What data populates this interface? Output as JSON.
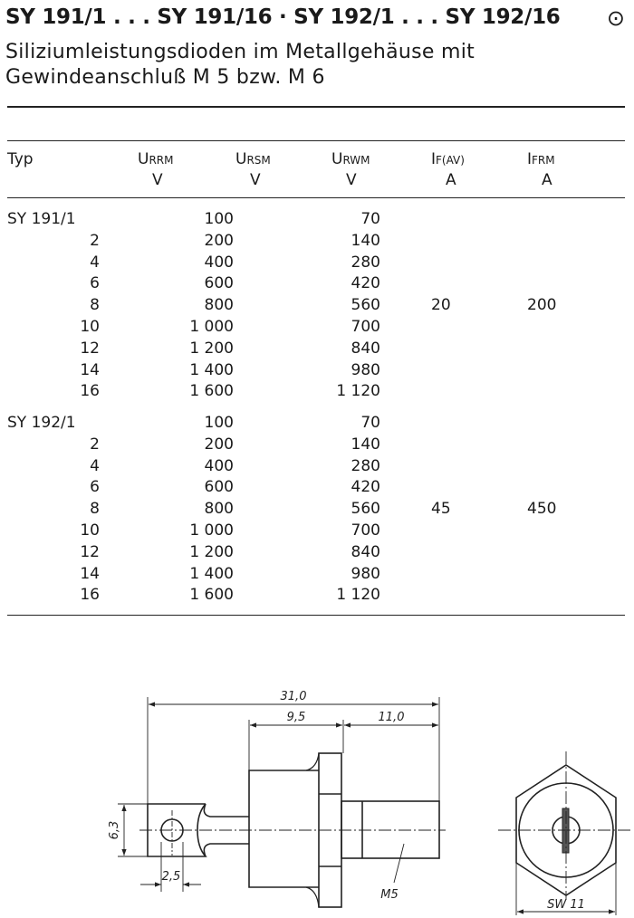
{
  "header": {
    "title": "SY 191/1 . . . SY 191/16 · SY 192/1 . . . SY 192/16",
    "symbol": "⊙",
    "subtitle_line1": "Siliziumleistungsdioden im Metallgehäuse mit",
    "subtitle_line2": "Gewindeanschluß M 5 bzw. M 6"
  },
  "table": {
    "columns": [
      {
        "main": "Typ",
        "unit": ""
      },
      {
        "main": "U",
        "sub": "RRM",
        "unit": "V"
      },
      {
        "main": "U",
        "sub": "RSM",
        "unit": "V"
      },
      {
        "main": "U",
        "sub": "RWM",
        "unit": "V"
      },
      {
        "main": "I",
        "sub": "F(AV)",
        "unit": "A"
      },
      {
        "main": "I",
        "sub": "FRM",
        "unit": "A"
      }
    ],
    "groups": [
      {
        "rows": [
          {
            "typ": "SY 191/1",
            "urrm": "100",
            "urwm": "70"
          },
          {
            "typ": "2",
            "urrm": "200",
            "urwm": "140"
          },
          {
            "typ": "4",
            "urrm": "400",
            "urwm": "280"
          },
          {
            "typ": "6",
            "urrm": "600",
            "urwm": "420"
          },
          {
            "typ": "8",
            "urrm": "800",
            "urwm": "560"
          },
          {
            "typ": "10",
            "urrm": "1 000",
            "urwm": "700"
          },
          {
            "typ": "12",
            "urrm": "1 200",
            "urwm": "840"
          },
          {
            "typ": "14",
            "urrm": "1 400",
            "urwm": "980"
          },
          {
            "typ": "16",
            "urrm": "1 600",
            "urwm": "1 120"
          }
        ],
        "if_av": "20",
        "ifrm": "200"
      },
      {
        "rows": [
          {
            "typ": "SY 192/1",
            "urrm": "100",
            "urwm": "70"
          },
          {
            "typ": "2",
            "urrm": "200",
            "urwm": "140"
          },
          {
            "typ": "4",
            "urrm": "400",
            "urwm": "280"
          },
          {
            "typ": "6",
            "urrm": "600",
            "urwm": "420"
          },
          {
            "typ": "8",
            "urrm": "800",
            "urwm": "560"
          },
          {
            "typ": "10",
            "urrm": "1 000",
            "urwm": "700"
          },
          {
            "typ": "12",
            "urrm": "1 200",
            "urwm": "840"
          },
          {
            "typ": "14",
            "urrm": "1 400",
            "urwm": "980"
          },
          {
            "typ": "16",
            "urrm": "1 600",
            "urwm": "1 120"
          }
        ],
        "if_av": "45",
        "ifrm": "450"
      }
    ]
  },
  "drawing": {
    "dim_total": "31,0",
    "dim_body": "9,5",
    "dim_thread": "11,0",
    "dim_lug_height": "6,3",
    "dim_hole": "2,5",
    "thread_label": "M5",
    "wrench_size": "SW 11"
  }
}
